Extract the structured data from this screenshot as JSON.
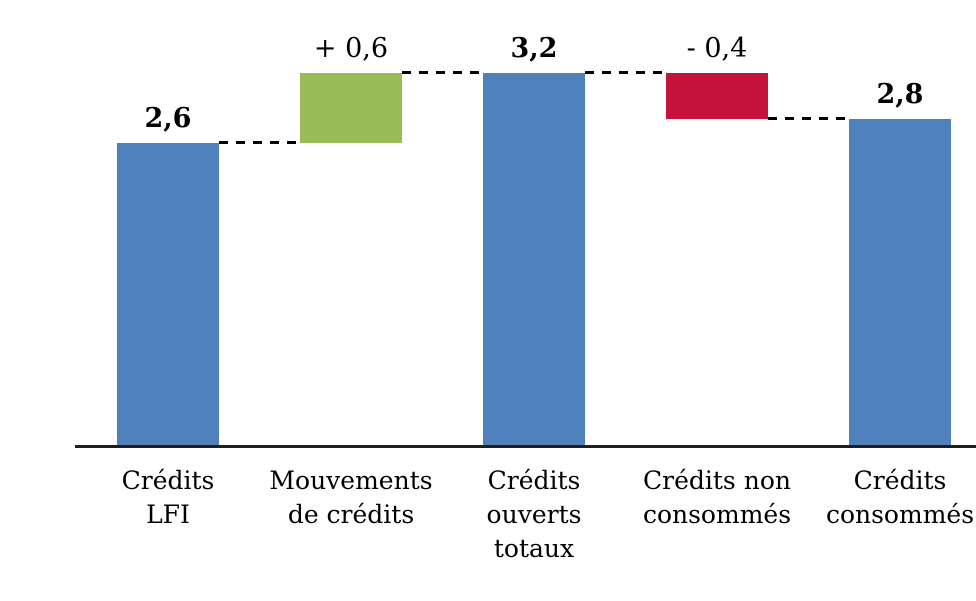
{
  "chart_data": {
    "type": "bar",
    "subtype": "waterfall",
    "title": "",
    "xlabel": "",
    "ylabel": "",
    "ylim": [
      0,
      3.6
    ],
    "grid": false,
    "legend": false,
    "connector_style": "dashed",
    "decimal_style": "comma",
    "categories": [
      "Crédits LFI",
      "Mouvements de crédits",
      "Crédits ouverts totaux",
      "Crédits non consommés",
      "Crédits consommés"
    ],
    "bars": [
      {
        "category_lines": [
          "Crédits",
          "LFI"
        ],
        "value_label": "2,6",
        "start": 0,
        "end": 2.6,
        "delta": 2.6,
        "color": "total",
        "emphasis": true
      },
      {
        "category_lines": [
          "Mouvements",
          "de crédits"
        ],
        "value_label": "+ 0,6",
        "start": 2.6,
        "end": 3.2,
        "delta": 0.6,
        "color": "increase",
        "emphasis": false
      },
      {
        "category_lines": [
          "Crédits",
          "ouverts",
          "totaux"
        ],
        "value_label": "3,2",
        "start": 0,
        "end": 3.2,
        "delta": 3.2,
        "color": "total",
        "emphasis": true
      },
      {
        "category_lines": [
          "Crédits non",
          "consommés"
        ],
        "value_label": "- 0,4",
        "start": 3.2,
        "end": 2.8,
        "delta": -0.4,
        "color": "decrease",
        "emphasis": false
      },
      {
        "category_lines": [
          "Crédits",
          "consommés"
        ],
        "value_label": "2,8",
        "start": 0,
        "end": 2.8,
        "delta": 2.8,
        "color": "total",
        "emphasis": true
      }
    ],
    "colors": {
      "total": "#4F81BD",
      "increase": "#9BBB59",
      "decrease": "#C4123D",
      "axis": "#1f1f1f",
      "connector": "#000000",
      "text": "#000000",
      "background": "#ffffff"
    }
  }
}
